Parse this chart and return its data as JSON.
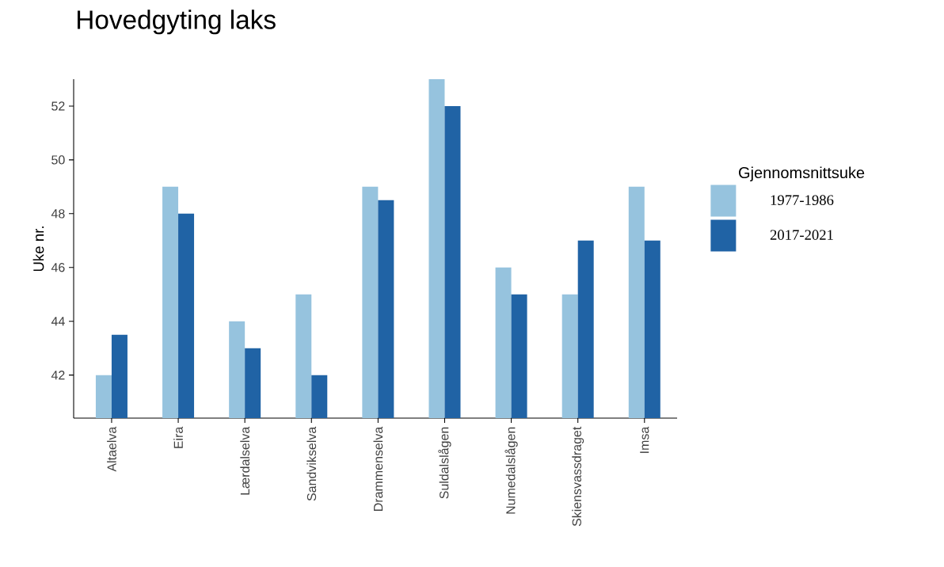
{
  "chart_data": {
    "type": "bar",
    "title": "Hovedgyting laks",
    "ylabel": "Uke nr.",
    "legend_title": "Gjennomsnittsuke",
    "legend": "right",
    "categories": [
      "Altaelva",
      "Eira",
      "Lærdalselva",
      "Sandvikselva",
      "Drammenselva",
      "Suldalslågen",
      "Numedalslågen",
      "Skiensvassdraget",
      "Imsa"
    ],
    "series": [
      {
        "name": "1977-1986",
        "color": "#96c3de",
        "values": [
          42,
          49,
          44,
          45,
          49,
          53,
          46,
          45,
          49
        ]
      },
      {
        "name": "2017-2021",
        "color": "#2063a5",
        "values": [
          43.5,
          48,
          43,
          42,
          48.5,
          52,
          45,
          47,
          47
        ]
      }
    ],
    "ylim": [
      40.4,
      53
    ],
    "yticks": [
      42,
      44,
      46,
      48,
      50,
      52
    ]
  }
}
